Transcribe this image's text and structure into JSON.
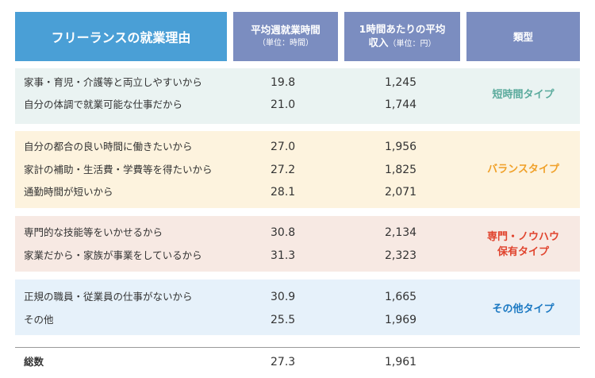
{
  "header": {
    "title": "フリーランスの就業理由",
    "hours_label": "平均週就業時間",
    "hours_unit": "（単位：時間）",
    "pay_label_line1": "1時間あたりの平均",
    "pay_label_line2": "収入",
    "pay_unit": "（単位：円）",
    "type_label": "類型"
  },
  "groups": [
    {
      "type": "短時間タイプ",
      "color": "#5aaa9c",
      "rows": [
        {
          "label": "家事・育児・介護等と両立しやすいから",
          "hours": "19.8",
          "pay": "1,245"
        },
        {
          "label": "自分の体調で就業可能な仕事だから",
          "hours": "21.0",
          "pay": "1,744"
        }
      ]
    },
    {
      "type": "バランスタイプ",
      "color": "#f0a028",
      "rows": [
        {
          "label": "自分の都合の良い時間に働きたいから",
          "hours": "27.0",
          "pay": "1,956"
        },
        {
          "label": "家計の補助・生活費・学費等を得たいから",
          "hours": "27.2",
          "pay": "1,825"
        },
        {
          "label": "通勤時間が短いから",
          "hours": "28.1",
          "pay": "2,071"
        }
      ]
    },
    {
      "type_line1": "専門・ノウハウ",
      "type_line2": "保有タイプ",
      "color": "#e0442e",
      "rows": [
        {
          "label": "専門的な技能等をいかせるから",
          "hours": "30.8",
          "pay": "2,134"
        },
        {
          "label": "家業だから・家族が事業をしているから",
          "hours": "31.3",
          "pay": "2,323"
        }
      ]
    },
    {
      "type": "その他タイプ",
      "color": "#1a78c2",
      "rows": [
        {
          "label": "正規の職員・従業員の仕事がないから",
          "hours": "30.9",
          "pay": "1,665"
        },
        {
          "label": "その他",
          "hours": "25.5",
          "pay": "1,969"
        }
      ]
    }
  ],
  "total": {
    "label": "総数",
    "hours": "27.3",
    "pay": "1,961"
  }
}
